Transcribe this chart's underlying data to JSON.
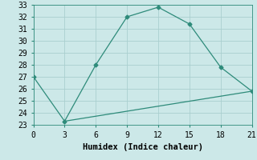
{
  "xlabel": "Humidex (Indice chaleur)",
  "x_ticks": [
    0,
    3,
    6,
    9,
    12,
    15,
    18,
    21
  ],
  "ylim": [
    23,
    33
  ],
  "xlim": [
    0,
    21
  ],
  "y_ticks": [
    23,
    24,
    25,
    26,
    27,
    28,
    29,
    30,
    31,
    32,
    33
  ],
  "line1_x": [
    0,
    3,
    6,
    9,
    12,
    15,
    18,
    21
  ],
  "line1_y": [
    27,
    23.3,
    28,
    32,
    32.8,
    31.4,
    27.8,
    25.8
  ],
  "line2_x": [
    3,
    21
  ],
  "line2_y": [
    23.3,
    25.8
  ],
  "line_color": "#2e8b7a",
  "bg_color": "#cce8e8",
  "grid_color": "#aacfcf",
  "tick_fontsize": 7,
  "xlabel_fontsize": 7.5,
  "marker": "D",
  "markersize": 2.5,
  "linewidth": 0.9
}
